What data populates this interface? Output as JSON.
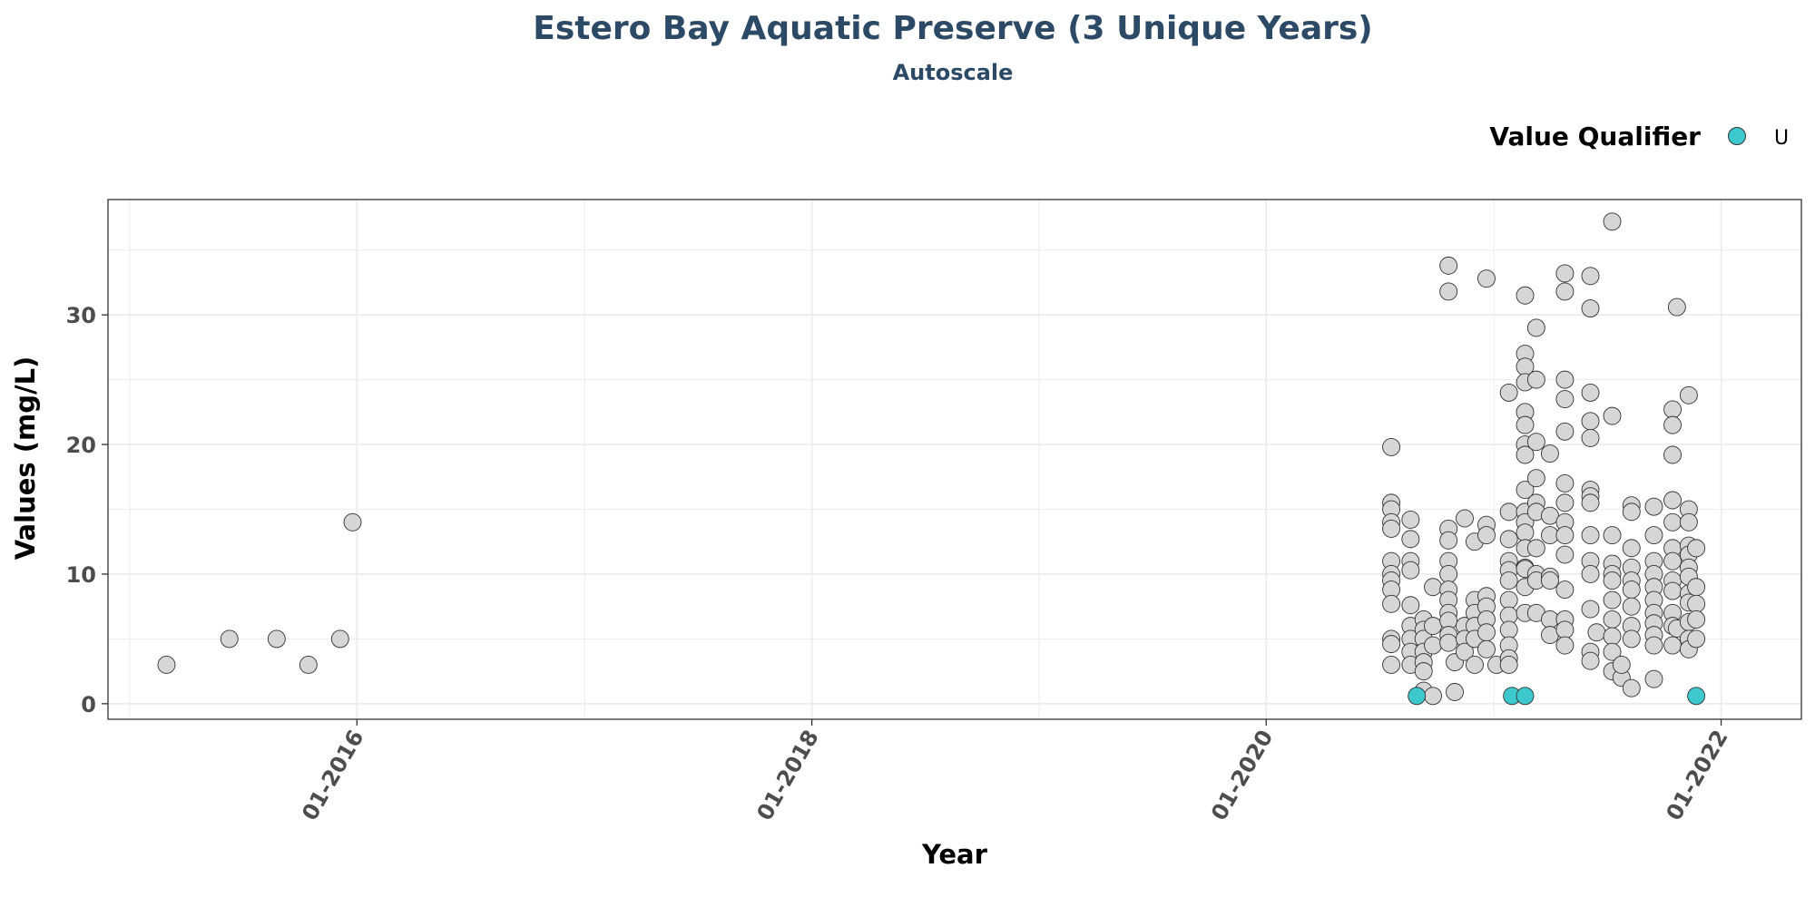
{
  "chart_data": {
    "type": "scatter",
    "title": "Estero Bay Aquatic Preserve (3 Unique Years)",
    "subtitle": "Autoscale",
    "xlabel": "Year",
    "ylabel": "Values (mg/L)",
    "xlim": [
      "2014-11-27",
      "2022-05-10"
    ],
    "ylim": [
      -1.2,
      38.9
    ],
    "x_ticks": [
      {
        "date": "2016-01-01",
        "label": "01-2016"
      },
      {
        "date": "2018-01-01",
        "label": "01-2018"
      },
      {
        "date": "2020-01-01",
        "label": "01-2020"
      },
      {
        "date": "2022-01-01",
        "label": "01-2022"
      }
    ],
    "y_ticks": [
      {
        "value": 0,
        "label": "0"
      },
      {
        "value": 10,
        "label": "10"
      },
      {
        "value": 20,
        "label": "20"
      },
      {
        "value": 30,
        "label": "30"
      }
    ],
    "grid": true,
    "legend": {
      "title": "Value Qualifier",
      "position": "top-right",
      "entries": [
        {
          "label": "U",
          "color": "#3cc8cc"
        }
      ]
    },
    "colors": {
      "unqualified": "#d6d6d6",
      "qualified_U": "#3cc8cc",
      "outline": "#333333",
      "title": "#2c4a66",
      "grid": "#ebebeb"
    },
    "series": [
      {
        "qualifier": "",
        "points": [
          [
            "2015-03-01",
            3
          ],
          [
            "2015-06-10",
            5
          ],
          [
            "2015-08-25",
            5
          ],
          [
            "2015-10-15",
            3
          ],
          [
            "2015-12-05",
            5
          ],
          [
            "2015-12-25",
            14
          ],
          [
            "2020-07-20",
            19.8
          ],
          [
            "2020-07-20",
            15.5
          ],
          [
            "2020-07-20",
            15
          ],
          [
            "2020-07-20",
            14
          ],
          [
            "2020-07-20",
            13.5
          ],
          [
            "2020-07-20",
            11
          ],
          [
            "2020-07-20",
            10
          ],
          [
            "2020-07-20",
            9.5
          ],
          [
            "2020-07-20",
            8.8
          ],
          [
            "2020-07-20",
            7.7
          ],
          [
            "2020-07-20",
            5
          ],
          [
            "2020-07-20",
            4.6
          ],
          [
            "2020-07-20",
            3
          ],
          [
            "2020-08-20",
            14.2
          ],
          [
            "2020-08-20",
            12.7
          ],
          [
            "2020-08-20",
            11
          ],
          [
            "2020-08-20",
            10.3
          ],
          [
            "2020-08-20",
            7.6
          ],
          [
            "2020-08-20",
            6
          ],
          [
            "2020-08-20",
            5
          ],
          [
            "2020-08-20",
            4
          ],
          [
            "2020-08-20",
            3
          ],
          [
            "2020-09-10",
            6.5
          ],
          [
            "2020-09-10",
            5.7
          ],
          [
            "2020-09-10",
            5
          ],
          [
            "2020-09-10",
            4
          ],
          [
            "2020-09-10",
            3.2
          ],
          [
            "2020-09-10",
            2.5
          ],
          [
            "2020-09-10",
            1
          ],
          [
            "2020-09-25",
            9
          ],
          [
            "2020-09-25",
            6
          ],
          [
            "2020-09-25",
            4.5
          ],
          [
            "2020-09-25",
            0.6
          ],
          [
            "2020-10-20",
            33.8
          ],
          [
            "2020-10-20",
            31.8
          ],
          [
            "2020-10-20",
            13.5
          ],
          [
            "2020-10-20",
            12.6
          ],
          [
            "2020-10-20",
            11
          ],
          [
            "2020-10-20",
            10
          ],
          [
            "2020-10-20",
            8.8
          ],
          [
            "2020-10-20",
            8
          ],
          [
            "2020-10-20",
            7
          ],
          [
            "2020-10-20",
            6.4
          ],
          [
            "2020-10-20",
            5.3
          ],
          [
            "2020-10-20",
            4.7
          ],
          [
            "2020-10-30",
            0.9
          ],
          [
            "2020-10-30",
            3.2
          ],
          [
            "2020-11-15",
            14.3
          ],
          [
            "2020-11-15",
            6
          ],
          [
            "2020-11-15",
            5
          ],
          [
            "2020-11-15",
            4
          ],
          [
            "2020-12-01",
            12.5
          ],
          [
            "2020-12-01",
            8
          ],
          [
            "2020-12-01",
            7
          ],
          [
            "2020-12-01",
            6
          ],
          [
            "2020-12-01",
            5
          ],
          [
            "2020-12-01",
            3
          ],
          [
            "2020-12-20",
            32.8
          ],
          [
            "2020-12-20",
            13.8
          ],
          [
            "2020-12-20",
            13
          ],
          [
            "2020-12-20",
            8.3
          ],
          [
            "2020-12-20",
            7.5
          ],
          [
            "2020-12-20",
            6.5
          ],
          [
            "2020-12-20",
            5.5
          ],
          [
            "2020-12-20",
            4.2
          ],
          [
            "2021-01-05",
            3
          ],
          [
            "2021-01-25",
            24
          ],
          [
            "2021-01-25",
            14.8
          ],
          [
            "2021-01-25",
            12.7
          ],
          [
            "2021-01-25",
            11
          ],
          [
            "2021-01-25",
            10.3
          ],
          [
            "2021-01-25",
            9.5
          ],
          [
            "2021-01-25",
            8
          ],
          [
            "2021-01-25",
            6.8
          ],
          [
            "2021-01-25",
            5.7
          ],
          [
            "2021-01-25",
            4.5
          ],
          [
            "2021-01-25",
            3.5
          ],
          [
            "2021-01-25",
            3
          ],
          [
            "2021-02-20",
            31.5
          ],
          [
            "2021-02-20",
            27
          ],
          [
            "2021-02-20",
            26
          ],
          [
            "2021-02-20",
            24.8
          ],
          [
            "2021-02-20",
            22.5
          ],
          [
            "2021-02-20",
            21.5
          ],
          [
            "2021-02-20",
            20
          ],
          [
            "2021-02-20",
            19.2
          ],
          [
            "2021-02-20",
            16.5
          ],
          [
            "2021-02-20",
            14.8
          ],
          [
            "2021-02-20",
            14
          ],
          [
            "2021-02-20",
            13.2
          ],
          [
            "2021-02-20",
            12
          ],
          [
            "2021-02-20",
            10.5
          ],
          [
            "2021-02-20",
            10.4
          ],
          [
            "2021-02-20",
            9
          ],
          [
            "2021-02-20",
            7
          ],
          [
            "2021-03-10",
            29
          ],
          [
            "2021-03-10",
            25
          ],
          [
            "2021-03-10",
            20.2
          ],
          [
            "2021-03-10",
            17.4
          ],
          [
            "2021-03-10",
            15.5
          ],
          [
            "2021-03-10",
            14.8
          ],
          [
            "2021-03-10",
            12
          ],
          [
            "2021-03-10",
            10
          ],
          [
            "2021-03-10",
            9.5
          ],
          [
            "2021-03-10",
            7
          ],
          [
            "2021-04-01",
            19.3
          ],
          [
            "2021-04-01",
            14.5
          ],
          [
            "2021-04-01",
            13
          ],
          [
            "2021-04-01",
            9.8
          ],
          [
            "2021-04-01",
            9.5
          ],
          [
            "2021-04-01",
            6.5
          ],
          [
            "2021-04-01",
            5.3
          ],
          [
            "2021-04-25",
            33.2
          ],
          [
            "2021-04-25",
            31.8
          ],
          [
            "2021-04-25",
            25
          ],
          [
            "2021-04-25",
            23.5
          ],
          [
            "2021-04-25",
            21
          ],
          [
            "2021-04-25",
            17
          ],
          [
            "2021-04-25",
            15.5
          ],
          [
            "2021-04-25",
            14
          ],
          [
            "2021-04-25",
            13
          ],
          [
            "2021-04-25",
            11.5
          ],
          [
            "2021-04-25",
            8.8
          ],
          [
            "2021-04-25",
            6.5
          ],
          [
            "2021-04-25",
            5.7
          ],
          [
            "2021-04-25",
            4.5
          ],
          [
            "2021-06-05",
            33
          ],
          [
            "2021-06-05",
            30.5
          ],
          [
            "2021-06-05",
            24
          ],
          [
            "2021-06-05",
            21.8
          ],
          [
            "2021-06-05",
            20.5
          ],
          [
            "2021-06-05",
            16.5
          ],
          [
            "2021-06-05",
            16
          ],
          [
            "2021-06-05",
            15.5
          ],
          [
            "2021-06-05",
            13
          ],
          [
            "2021-06-05",
            11
          ],
          [
            "2021-06-05",
            10
          ],
          [
            "2021-06-05",
            7.3
          ],
          [
            "2021-06-05",
            4
          ],
          [
            "2021-06-05",
            3.3
          ],
          [
            "2021-06-15",
            5.5
          ],
          [
            "2021-07-10",
            37.2
          ],
          [
            "2021-07-10",
            22.2
          ],
          [
            "2021-07-10",
            13
          ],
          [
            "2021-07-10",
            10.8
          ],
          [
            "2021-07-10",
            10
          ],
          [
            "2021-07-10",
            9.5
          ],
          [
            "2021-07-10",
            8
          ],
          [
            "2021-07-10",
            6.5
          ],
          [
            "2021-07-10",
            5.2
          ],
          [
            "2021-07-10",
            4
          ],
          [
            "2021-07-10",
            2.5
          ],
          [
            "2021-07-25",
            2
          ],
          [
            "2021-07-25",
            3
          ],
          [
            "2021-08-10",
            15.3
          ],
          [
            "2021-08-10",
            14.8
          ],
          [
            "2021-08-10",
            12
          ],
          [
            "2021-08-10",
            10.5
          ],
          [
            "2021-08-10",
            9.5
          ],
          [
            "2021-08-10",
            8.8
          ],
          [
            "2021-08-10",
            7.5
          ],
          [
            "2021-08-10",
            6
          ],
          [
            "2021-08-10",
            5
          ],
          [
            "2021-08-10",
            1.2
          ],
          [
            "2021-09-15",
            15.2
          ],
          [
            "2021-09-15",
            13
          ],
          [
            "2021-09-15",
            11
          ],
          [
            "2021-09-15",
            10
          ],
          [
            "2021-09-15",
            9
          ],
          [
            "2021-09-15",
            8
          ],
          [
            "2021-09-15",
            7
          ],
          [
            "2021-09-15",
            6.2
          ],
          [
            "2021-09-15",
            5.3
          ],
          [
            "2021-09-15",
            4.5
          ],
          [
            "2021-09-15",
            1.9
          ],
          [
            "2021-10-15",
            22.7
          ],
          [
            "2021-10-15",
            21.5
          ],
          [
            "2021-10-15",
            19.2
          ],
          [
            "2021-10-15",
            15.7
          ],
          [
            "2021-10-15",
            14
          ],
          [
            "2021-10-15",
            12
          ],
          [
            "2021-10-15",
            11
          ],
          [
            "2021-10-15",
            9.5
          ],
          [
            "2021-10-15",
            8.7
          ],
          [
            "2021-10-15",
            7
          ],
          [
            "2021-10-15",
            6
          ],
          [
            "2021-10-15",
            4.5
          ],
          [
            "2021-10-22",
            30.6
          ],
          [
            "2021-10-22",
            5.8
          ],
          [
            "2021-11-10",
            23.8
          ],
          [
            "2021-11-10",
            15
          ],
          [
            "2021-11-10",
            14
          ],
          [
            "2021-11-10",
            12.2
          ],
          [
            "2021-11-10",
            11.5
          ],
          [
            "2021-11-10",
            10.5
          ],
          [
            "2021-11-10",
            9.8
          ],
          [
            "2021-11-10",
            8.5
          ],
          [
            "2021-11-10",
            7.8
          ],
          [
            "2021-11-10",
            6.3
          ],
          [
            "2021-11-10",
            5
          ],
          [
            "2021-11-10",
            4.2
          ],
          [
            "2021-11-22",
            12
          ],
          [
            "2021-11-22",
            9
          ],
          [
            "2021-11-22",
            7.7
          ],
          [
            "2021-11-22",
            6.5
          ],
          [
            "2021-11-22",
            5
          ]
        ]
      },
      {
        "qualifier": "U",
        "points": [
          [
            "2020-08-30",
            0.6
          ],
          [
            "2021-01-30",
            0.6
          ],
          [
            "2021-02-20",
            0.6
          ],
          [
            "2021-11-22",
            0.6
          ]
        ]
      }
    ]
  }
}
